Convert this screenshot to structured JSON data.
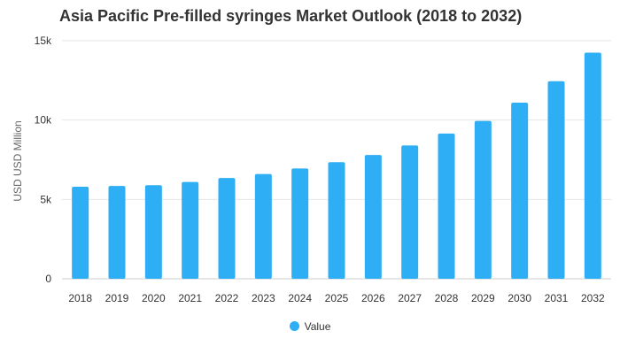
{
  "chart_data": {
    "type": "bar",
    "title": "Asia Pacific Pre-filled syringes Market Outlook (2018 to 2032)",
    "ylabel": "USD USD Million",
    "xlabel": "",
    "categories": [
      "2018",
      "2019",
      "2020",
      "2021",
      "2022",
      "2023",
      "2024",
      "2025",
      "2026",
      "2027",
      "2028",
      "2029",
      "2030",
      "2031",
      "2032"
    ],
    "series": [
      {
        "name": "Value",
        "values": [
          5800,
          5850,
          5900,
          6100,
          6350,
          6600,
          6950,
          7350,
          7800,
          8400,
          9150,
          9950,
          11100,
          12450,
          14250
        ]
      }
    ],
    "ylim": [
      0,
      15000
    ],
    "yticks": [
      {
        "value": 0,
        "label": "0"
      },
      {
        "value": 5000,
        "label": "5k"
      },
      {
        "value": 10000,
        "label": "10k"
      },
      {
        "value": 15000,
        "label": "15k"
      }
    ],
    "grid": true,
    "legend_position": "bottom-center",
    "bar_color": "#2DAEF5"
  }
}
